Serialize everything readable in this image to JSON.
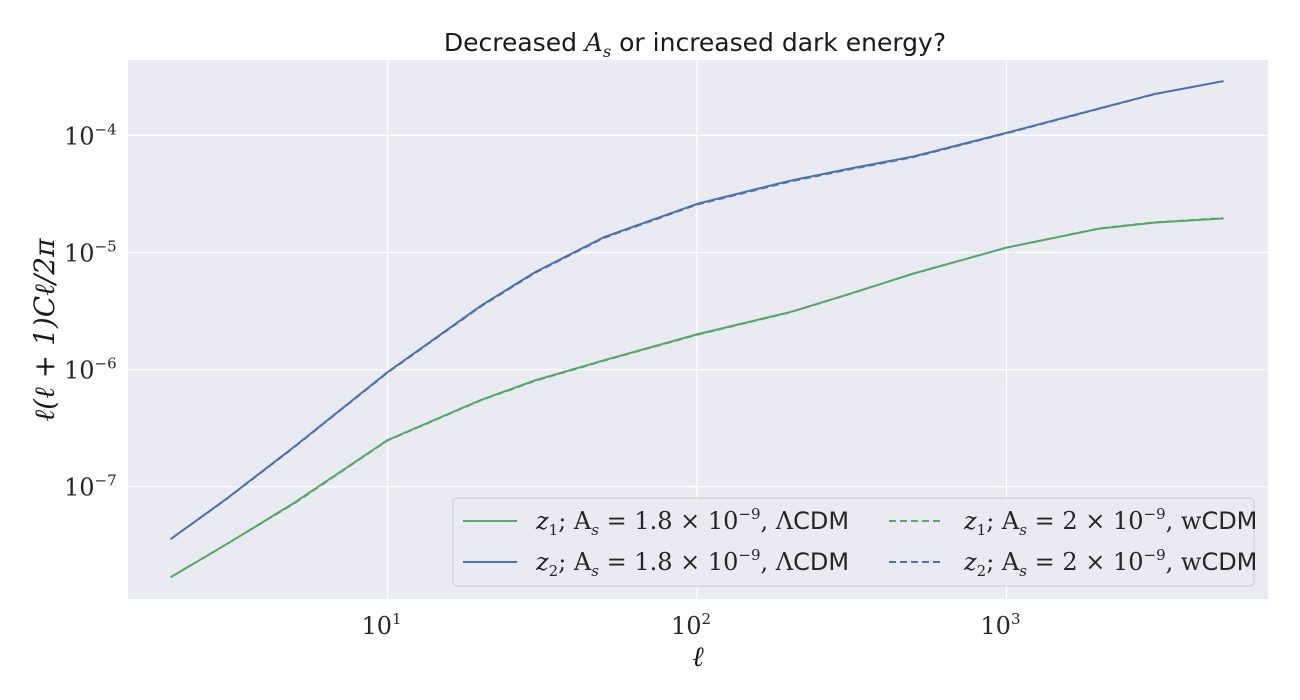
{
  "chart_data": {
    "type": "line",
    "title": "Decreased A_s or increased dark energy?",
    "title_parts": {
      "prefix": "Decreased ",
      "symbol": "A",
      "symbol_sub": "s",
      "suffix": " or increased dark energy?"
    },
    "xlabel": "ℓ",
    "ylabel": "ℓ(ℓ + 1)C_ℓ/2π",
    "ylabel_display": "ℓ(ℓ + 1)Cℓ/2π",
    "xscale": "log",
    "yscale": "log",
    "xlim": [
      1.45,
      7000
    ],
    "ylim": [
      1.1e-08,
      0.00044
    ],
    "x_ticks": [
      {
        "value": 10,
        "base": "10",
        "exp": "1"
      },
      {
        "value": 100,
        "base": "10",
        "exp": "2"
      },
      {
        "value": 1000,
        "base": "10",
        "exp": "3"
      }
    ],
    "y_ticks": [
      {
        "value": 1e-07,
        "base": "10",
        "exp": "−7"
      },
      {
        "value": 1e-06,
        "base": "10",
        "exp": "−6"
      },
      {
        "value": 1e-05,
        "base": "10",
        "exp": "−5"
      },
      {
        "value": 0.0001,
        "base": "10",
        "exp": "−4"
      }
    ],
    "grid": true,
    "legend_placement": "lower-right",
    "colors": {
      "green": "#55a868",
      "blue": "#4c72b0",
      "background": "#eaeaf2",
      "grid": "#ffffff"
    },
    "series": [
      {
        "name": "z₁; A_s = 1.8 × 10⁻⁹, ΛCDM",
        "legend": {
          "z": "z",
          "zsub": "1",
          "pre": "; A",
          "asub": "s",
          "mid": " = 1.8 × 10",
          "sup": "−9",
          "post": ", Λ",
          "model": "CDM"
        },
        "color": "#55a868",
        "style": "solid",
        "x": [
          2,
          3,
          5,
          10,
          20,
          30,
          50,
          100,
          200,
          300,
          500,
          1000,
          2000,
          3000,
          5000
        ],
        "y": [
          1.7e-08,
          3.2e-08,
          7.3e-08,
          2.5e-07,
          5.5e-07,
          8.1e-07,
          1.2e-06,
          2e-06,
          3.1e-06,
          4.3e-06,
          6.6e-06,
          1.1e-05,
          1.6e-05,
          1.8e-05,
          1.95e-05
        ]
      },
      {
        "name": "z₂; A_s = 1.8 × 10⁻⁹, ΛCDM",
        "legend": {
          "z": "z",
          "zsub": "2",
          "pre": "; A",
          "asub": "s",
          "mid": " = 1.8 × 10",
          "sup": "−9",
          "post": ", Λ",
          "model": "CDM"
        },
        "color": "#4c72b0",
        "style": "solid",
        "x": [
          2,
          3,
          5,
          10,
          20,
          30,
          50,
          100,
          200,
          300,
          500,
          1000,
          2000,
          3000,
          5000
        ],
        "y": [
          3.6e-08,
          7.8e-08,
          2.2e-07,
          9.5e-07,
          3.5e-06,
          6.8e-06,
          1.35e-05,
          2.6e-05,
          4.1e-05,
          5.1e-05,
          6.6e-05,
          0.000105,
          0.00017,
          0.000225,
          0.00029
        ]
      },
      {
        "name": "z₁; A_s = 2 × 10⁻⁹, wCDM",
        "legend": {
          "z": "z",
          "zsub": "1",
          "pre": "; A",
          "asub": "s",
          "mid": " = 2 × 10",
          "sup": "−9",
          "post": ", w",
          "model": "CDM"
        },
        "color": "#55a868",
        "style": "dashed",
        "x": [
          2,
          3,
          5,
          10,
          20,
          30,
          50,
          100,
          200,
          300,
          500,
          1000,
          2000,
          3000,
          5000
        ],
        "y": [
          1.7e-08,
          3.2e-08,
          7.2e-08,
          2.48e-07,
          5.45e-07,
          8e-07,
          1.19e-06,
          1.98e-06,
          3.08e-06,
          4.28e-06,
          6.6e-06,
          1.1e-05,
          1.61e-05,
          1.81e-05,
          1.97e-05
        ]
      },
      {
        "name": "z₂; A_s = 2 × 10⁻⁹, wCDM",
        "legend": {
          "z": "z",
          "zsub": "2",
          "pre": "; A",
          "asub": "s",
          "mid": " = 2 × 10",
          "sup": "−9",
          "post": ", w",
          "model": "CDM"
        },
        "color": "#4c72b0",
        "style": "dashed",
        "x": [
          2,
          3,
          5,
          10,
          20,
          30,
          50,
          100,
          200,
          300,
          500,
          1000,
          2000,
          3000,
          5000
        ],
        "y": [
          3.6e-08,
          7.75e-08,
          2.18e-07,
          9.4e-07,
          3.45e-06,
          6.7e-06,
          1.33e-05,
          2.56e-05,
          4.03e-05,
          5.02e-05,
          6.5e-05,
          0.000104,
          0.000169,
          0.000224,
          0.00029
        ]
      }
    ]
  }
}
